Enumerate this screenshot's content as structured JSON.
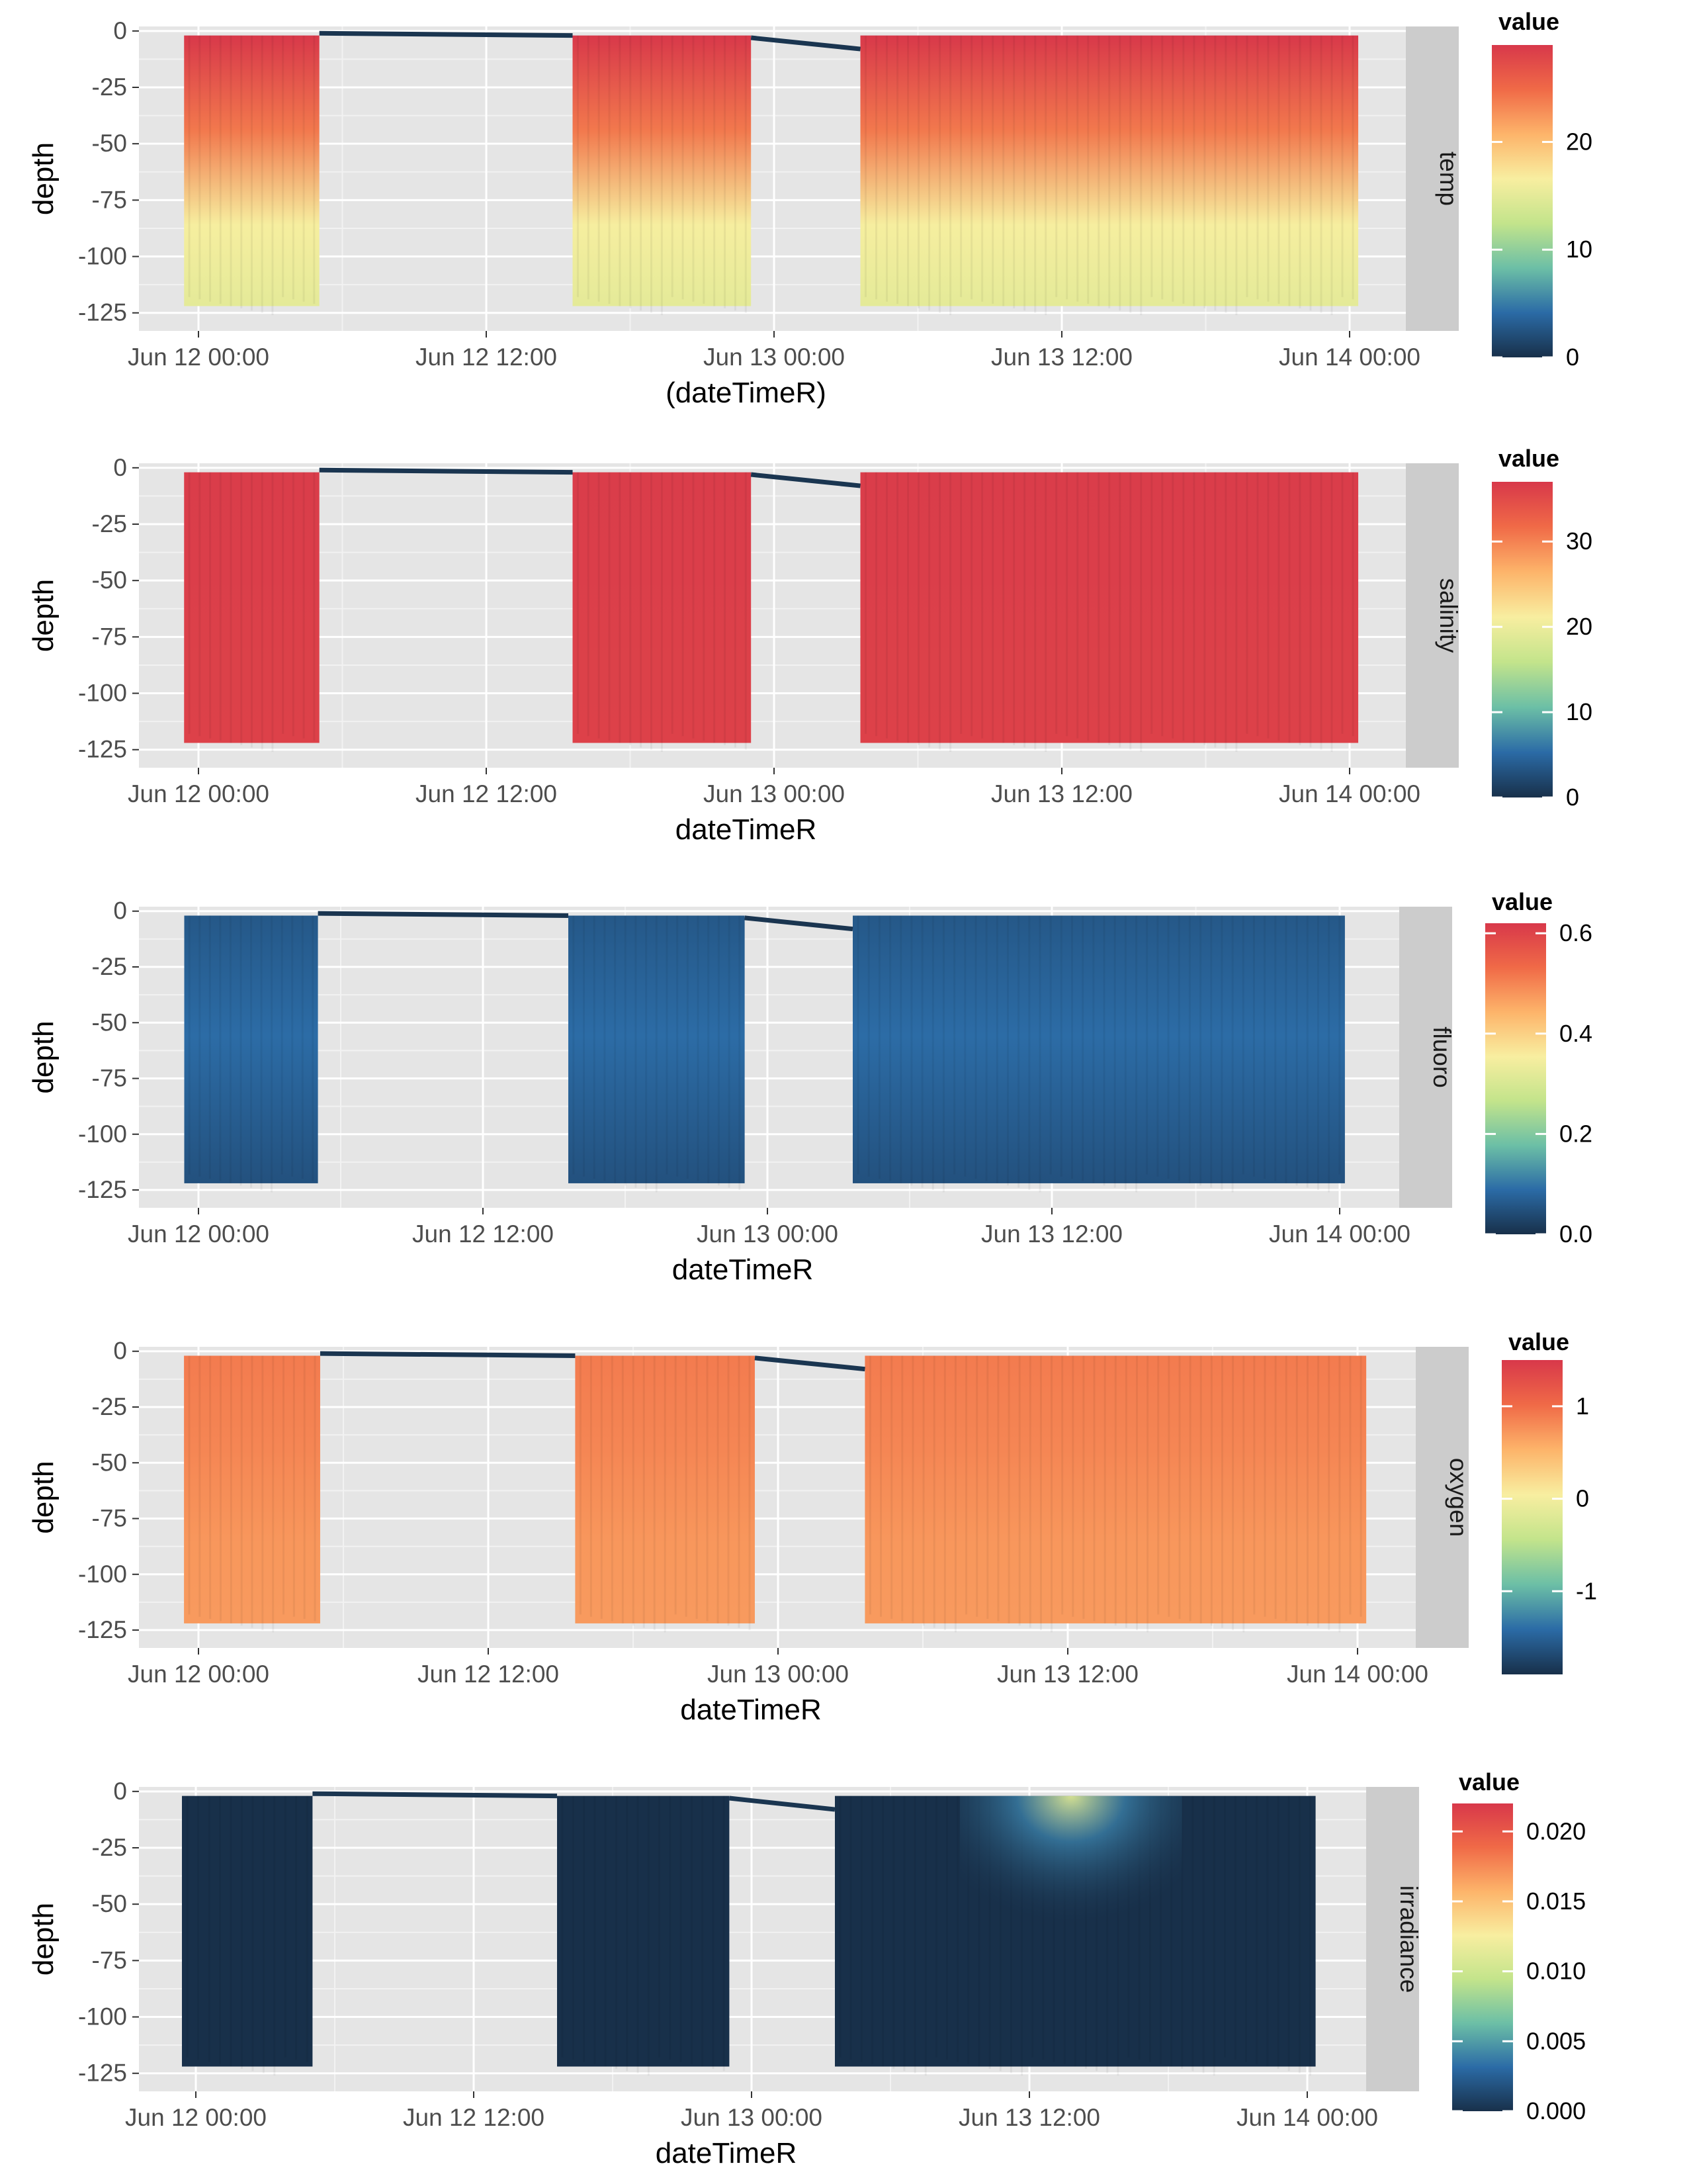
{
  "chart_data": [
    {
      "type": "heatmap",
      "facet": "temp",
      "xlabel": "(dateTimeR)",
      "ylabel": "depth",
      "x_ticks": [
        "Jun 12 00:00",
        "Jun 12 12:00",
        "Jun 13 00:00",
        "Jun 13 12:00",
        "Jun 14 00:00"
      ],
      "y_ticks": [
        "0",
        "-25",
        "-50",
        "-75",
        "-100",
        "-125"
      ],
      "ylim": [
        -133,
        2
      ],
      "legend": {
        "title": "value",
        "ticks": [
          "20",
          "10",
          "0"
        ],
        "range": [
          0,
          29
        ]
      },
      "profile": {
        "surface": 29,
        "deep": 15
      },
      "grid": true,
      "legend_position": "right"
    },
    {
      "type": "heatmap",
      "facet": "salinity",
      "xlabel": "dateTimeR",
      "ylabel": "depth",
      "x_ticks": [
        "Jun 12 00:00",
        "Jun 12 12:00",
        "Jun 13 00:00",
        "Jun 13 12:00",
        "Jun 14 00:00"
      ],
      "y_ticks": [
        "0",
        "-25",
        "-50",
        "-75",
        "-100",
        "-125"
      ],
      "ylim": [
        -133,
        2
      ],
      "legend": {
        "title": "value",
        "ticks": [
          "30",
          "20",
          "10",
          "0"
        ],
        "range": [
          0,
          37
        ]
      },
      "profile": {
        "surface": 36.5,
        "deep": 36.0
      },
      "grid": true,
      "legend_position": "right"
    },
    {
      "type": "heatmap",
      "facet": "fluoro",
      "xlabel": "dateTimeR",
      "ylabel": "depth",
      "x_ticks": [
        "Jun 12 00:00",
        "Jun 12 12:00",
        "Jun 13 00:00",
        "Jun 13 12:00",
        "Jun 14 00:00"
      ],
      "y_ticks": [
        "0",
        "-25",
        "-50",
        "-75",
        "-100",
        "-125"
      ],
      "ylim": [
        -133,
        2
      ],
      "legend": {
        "title": "value",
        "ticks": [
          "0.6",
          "0.4",
          "0.2",
          "0.0"
        ],
        "range": [
          0,
          0.62
        ]
      },
      "profile": {
        "surface": 0.06,
        "deep": 0.05,
        "mid_peak": 0.09
      },
      "grid": true,
      "legend_position": "right"
    },
    {
      "type": "heatmap",
      "facet": "oxygen",
      "xlabel": "dateTimeR",
      "ylabel": "depth",
      "x_ticks": [
        "Jun 12 00:00",
        "Jun 12 12:00",
        "Jun 13 00:00",
        "Jun 13 12:00",
        "Jun 14 00:00"
      ],
      "y_ticks": [
        "0",
        "-25",
        "-50",
        "-75",
        "-100",
        "-125"
      ],
      "ylim": [
        -133,
        2
      ],
      "legend": {
        "title": "value",
        "ticks": [
          "1",
          "0",
          "-1"
        ],
        "range": [
          -1.9,
          1.5
        ]
      },
      "profile": {
        "surface": 0.9,
        "deep": 0.7
      },
      "grid": true,
      "legend_position": "right"
    },
    {
      "type": "heatmap",
      "facet": "irradiance",
      "xlabel": "dateTimeR",
      "ylabel": "depth",
      "x_ticks": [
        "Jun 12 00:00",
        "Jun 12 12:00",
        "Jun 13 00:00",
        "Jun 13 12:00",
        "Jun 14 00:00"
      ],
      "y_ticks": [
        "0",
        "-25",
        "-50",
        "-75",
        "-100",
        "-125"
      ],
      "ylim": [
        -133,
        2
      ],
      "legend": {
        "title": "value",
        "ticks": [
          "0.020",
          "0.015",
          "0.010",
          "0.005",
          "0.000"
        ],
        "range": [
          0,
          0.022
        ]
      },
      "profile": {
        "surface": 0.0,
        "deep": 0.0,
        "day_surface_peak": 0.011
      },
      "grid": true,
      "legend_position": "right"
    }
  ],
  "colors": {
    "panel_background": "#e5e5e5",
    "grid": "#ffffff",
    "strip_background": "#cccccc",
    "transit_line": "#1a3550",
    "palette": [
      "#18304a",
      "#2b6ba6",
      "#6cbfa6",
      "#c3e48b",
      "#f8eea0",
      "#fdb46a",
      "#f06a47",
      "#d8384a"
    ]
  }
}
